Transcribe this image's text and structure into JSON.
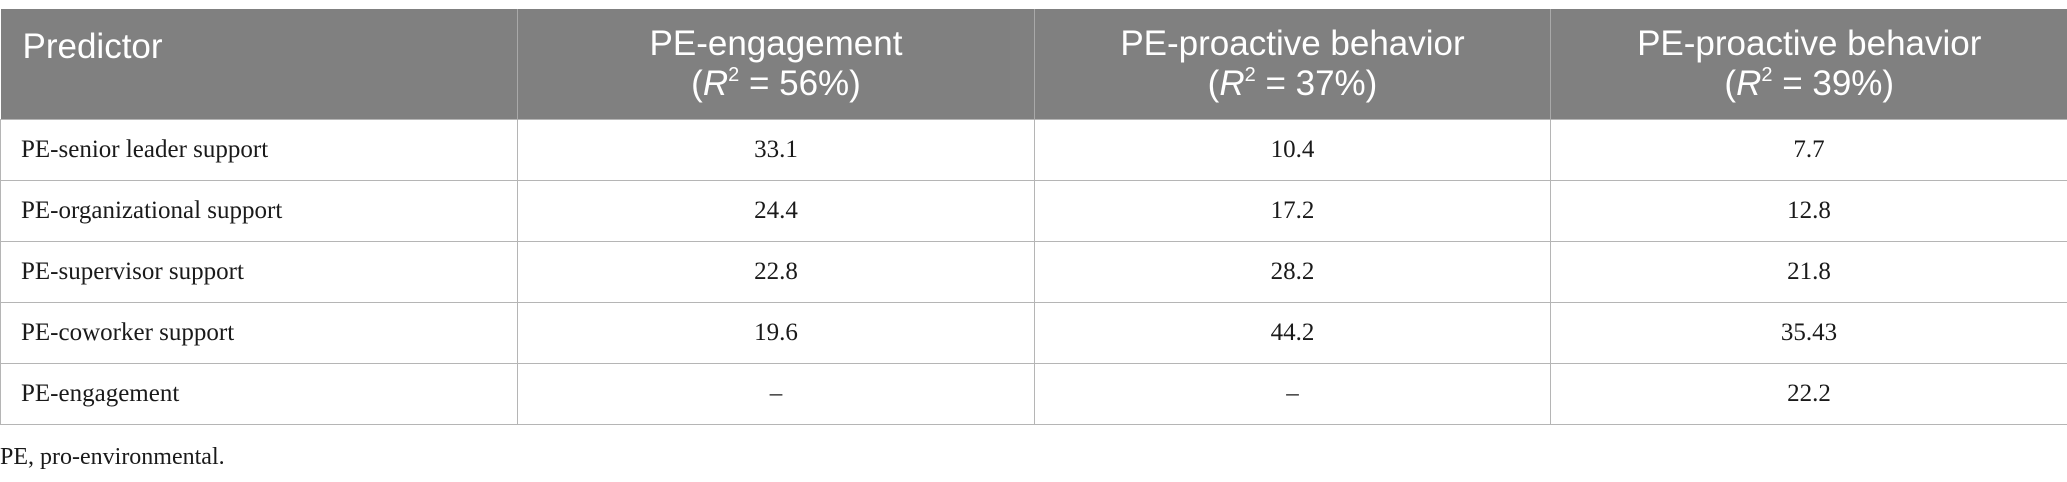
{
  "table": {
    "header": {
      "predictor": "Predictor",
      "col1": {
        "title": "PE-engagement",
        "r_symbol": "R",
        "r_sup": "2",
        "r_value": " = 56%)",
        "open": "("
      },
      "col2": {
        "title": "PE-proactive behavior",
        "r_symbol": "R",
        "r_sup": "2",
        "r_value": " = 37%)",
        "open": "("
      },
      "col3": {
        "title": "PE-proactive behavior",
        "r_symbol": "R",
        "r_sup": "2",
        "r_value": " = 39%)",
        "open": "("
      }
    },
    "rows": [
      {
        "predictor": "PE-senior leader support",
        "v1": "33.1",
        "v2": "10.4",
        "v3": "7.7"
      },
      {
        "predictor": "PE-organizational support",
        "v1": "24.4",
        "v2": "17.2",
        "v3": "12.8"
      },
      {
        "predictor": "PE-supervisor support",
        "v1": "22.8",
        "v2": "28.2",
        "v3": "21.8"
      },
      {
        "predictor": "PE-coworker support",
        "v1": "19.6",
        "v2": "44.2",
        "v3": "35.43"
      },
      {
        "predictor": "PE-engagement",
        "v1": "–",
        "v2": "–",
        "v3": "22.2"
      }
    ]
  },
  "footnote": "PE, pro-environmental.",
  "colors": {
    "header_bg": "#808080",
    "header_text": "#ffffff",
    "grid": "#b5b5b5"
  }
}
